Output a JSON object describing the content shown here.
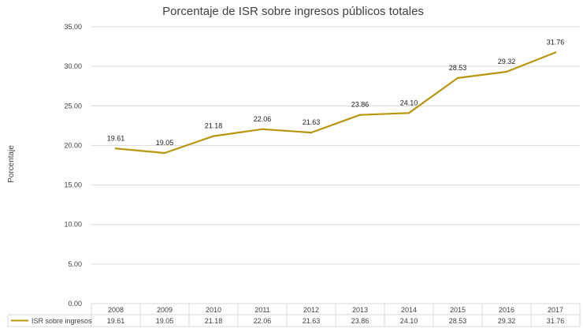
{
  "chart_data": {
    "type": "line",
    "title": "Porcentaje de ISR sobre ingresos públicos totales",
    "xlabel": "",
    "ylabel": "Porcentaje",
    "ylim": [
      0,
      35
    ],
    "yticks": [
      "0.00",
      "5.00",
      "10.00",
      "15.00",
      "20.00",
      "25.00",
      "30.00",
      "35.00"
    ],
    "grid": true,
    "legend": "data-table",
    "categories": [
      "2008",
      "2009",
      "2010",
      "2011",
      "2012",
      "2013",
      "2014",
      "2015",
      "2016",
      "2017"
    ],
    "series": [
      {
        "name": "ISR sobre ingresos",
        "color": "#B8960C",
        "values": [
          19.61,
          19.05,
          21.18,
          22.06,
          21.63,
          23.86,
          24.1,
          28.53,
          29.32,
          31.76
        ],
        "labels": [
          "19.61",
          "19.05",
          "21.18",
          "22.06",
          "21.63",
          "23.86",
          "24.10",
          "28.53",
          "29.32",
          "31.76"
        ]
      }
    ]
  }
}
